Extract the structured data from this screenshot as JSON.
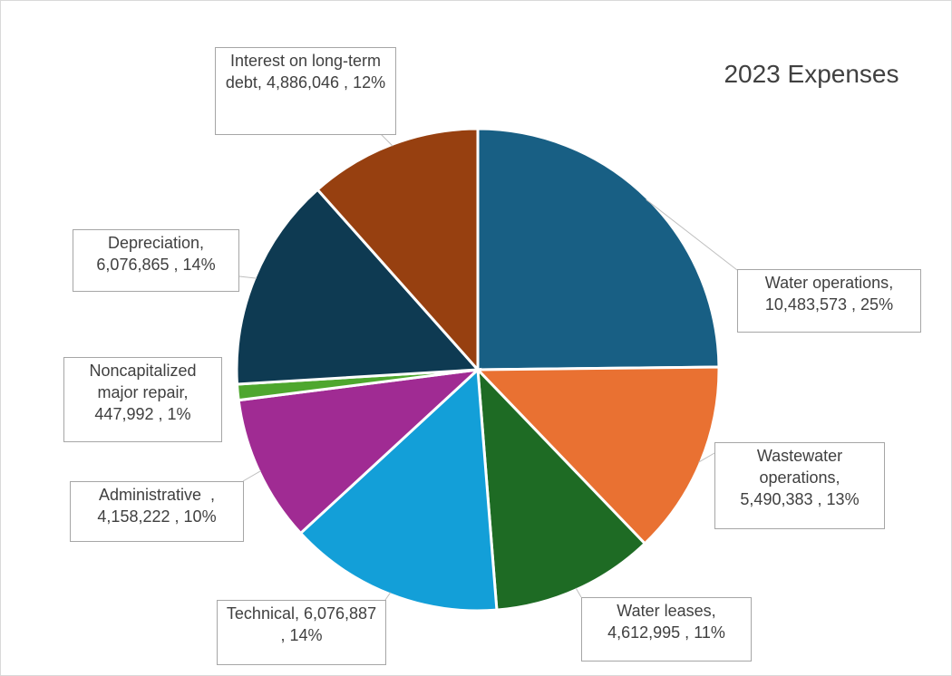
{
  "chart_data": {
    "type": "pie",
    "title": "2023 Expenses",
    "categories": [
      "Water operations",
      "Wastewater operations",
      "Water leases",
      "Technical",
      "Administrative  ",
      "Noncapitalized major repair",
      "Depreciation",
      "Interest on long-term debt"
    ],
    "values": [
      10483573,
      5490383,
      4612995,
      6076887,
      4158222,
      447992,
      6076865,
      4886046
    ],
    "value_labels": [
      "10,483,573",
      "5,490,383",
      "4,612,995",
      "6,076,887",
      "4,158,222",
      "447,992",
      "6,076,865",
      "4,886,046"
    ],
    "percent_labels": [
      "25%",
      "13%",
      "11%",
      "14%",
      "10%",
      "1%",
      "14%",
      "12%"
    ],
    "label_separator": ",",
    "colors": [
      "#185f84",
      "#e97132",
      "#1e6b24",
      "#139fd8",
      "#a02b93",
      "#4ea72e",
      "#0e3a52",
      "#974010"
    ]
  }
}
